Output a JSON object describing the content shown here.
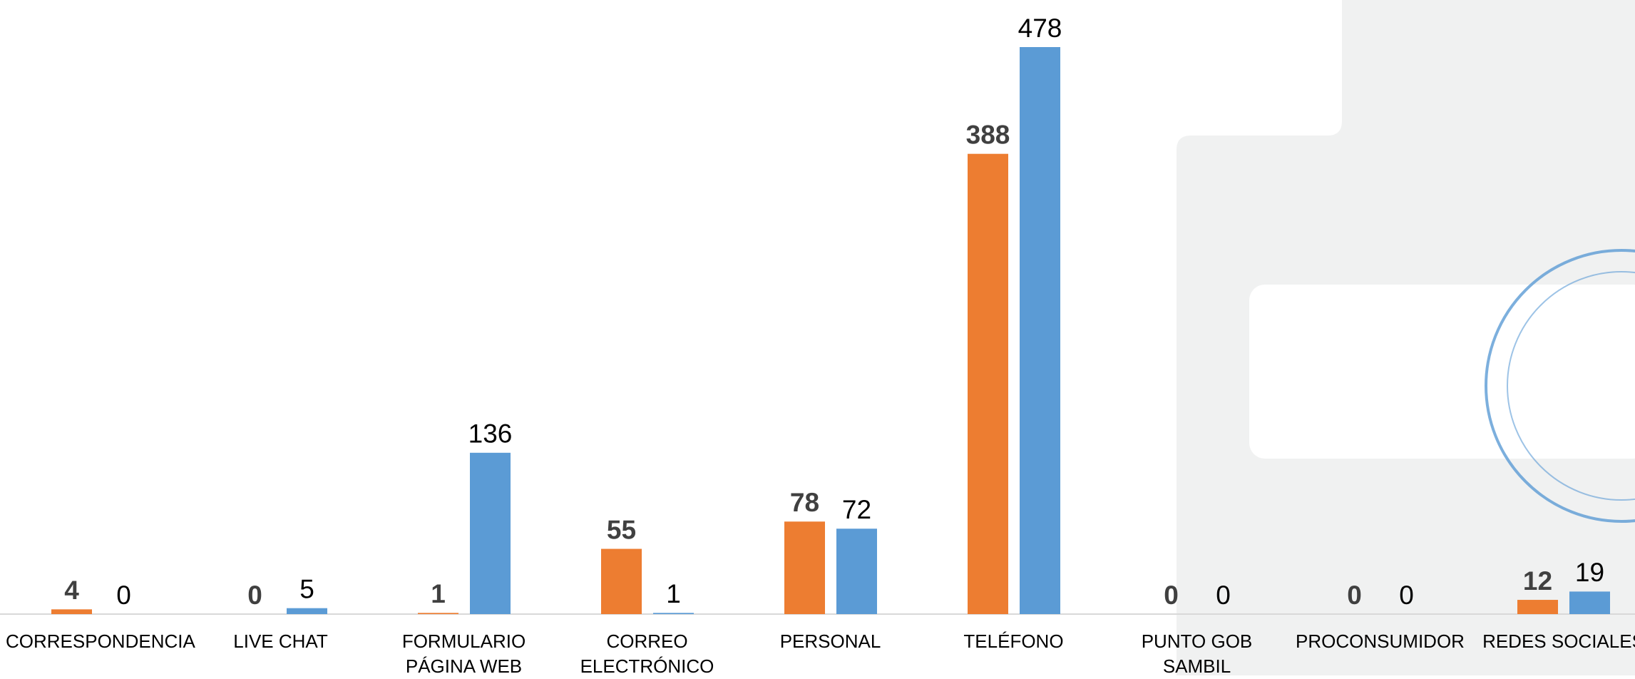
{
  "chart_data": {
    "type": "bar",
    "categories": [
      "CORRESPONDENCIA",
      "LIVE CHAT",
      "FORMULARIO\nPÁGINA WEB",
      "CORREO\nELECTRÓNICO",
      "PERSONAL",
      "TELÉFONO",
      "PUNTO GOB SAMBIL",
      "PROCONSUMIDOR",
      "REDES SOCIALES"
    ],
    "series": [
      {
        "color": "#ed7d31",
        "values": [
          4,
          0,
          1,
          55,
          78,
          388,
          0,
          0,
          12
        ]
      },
      {
        "color": "#5b9bd5",
        "values": [
          0,
          5,
          136,
          1,
          72,
          478,
          0,
          0,
          19
        ]
      }
    ]
  }
}
